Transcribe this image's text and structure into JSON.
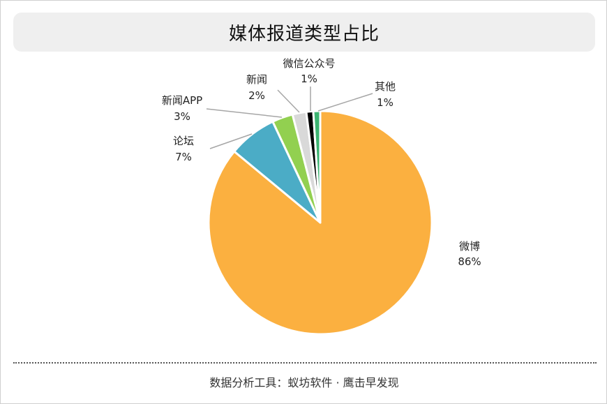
{
  "title": "媒体报道类型占比",
  "footer": "数据分析工具：蚁坊软件 · 鹰击早发现",
  "chart_data": {
    "type": "pie",
    "title": "媒体报道类型占比",
    "slices": [
      {
        "name": "微博",
        "value": 86,
        "label": "86%",
        "color": "#FBB040"
      },
      {
        "name": "论坛",
        "value": 7,
        "label": "7%",
        "color": "#4BACC6"
      },
      {
        "name": "新闻APP",
        "value": 3,
        "label": "3%",
        "color": "#92D050"
      },
      {
        "name": "新闻",
        "value": 2,
        "label": "2%",
        "color": "#D9D9D9"
      },
      {
        "name": "微信公众号",
        "value": 1,
        "label": "1%",
        "color": "#000000"
      },
      {
        "name": "其他",
        "value": 1,
        "label": "1%",
        "color": "#3CB371"
      }
    ]
  }
}
